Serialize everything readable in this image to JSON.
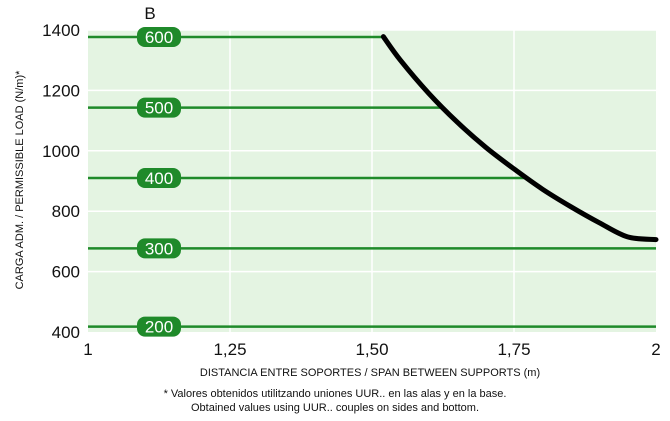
{
  "chart_data": {
    "type": "line",
    "panel_label": "B",
    "xlabel": "DISTANCIA ENTRE SOPORTES / SPAN BETWEEN SUPPORTS (m)",
    "ylabel": "CARGA ADM. / PERMISSIBLE LOAD (N/m)*",
    "xlim": [
      1,
      2
    ],
    "ylim": [
      400,
      1400
    ],
    "x_ticks": [
      "1",
      "1,25",
      "1,50",
      "1,75",
      "2"
    ],
    "x_tick_values": [
      1,
      1.25,
      1.5,
      1.75,
      2
    ],
    "y_ticks": [
      "400",
      "600",
      "800",
      "1000",
      "1200",
      "1400"
    ],
    "y_tick_values": [
      400,
      600,
      800,
      1000,
      1200,
      1400
    ],
    "grid": true,
    "curve": {
      "x": [
        1.52,
        1.55,
        1.6,
        1.65,
        1.7,
        1.75,
        1.8,
        1.85,
        1.9,
        1.95,
        2.0
      ],
      "y": [
        1378,
        1300,
        1190,
        1095,
        1012,
        940,
        873,
        815,
        762,
        715,
        706
      ]
    },
    "reference_lines": [
      {
        "label": "600",
        "y": 1377,
        "x_end": 1.52
      },
      {
        "label": "500",
        "y": 1143,
        "x_end": 1.62
      },
      {
        "label": "400",
        "y": 910,
        "x_end": 1.77
      },
      {
        "label": "300",
        "y": 677,
        "x_end": 2.0
      },
      {
        "label": "200",
        "y": 418,
        "x_end": 2.0
      }
    ],
    "colors": {
      "plot_background": "#e4f4e2",
      "grid": "#ffffff",
      "reference_line": "#1f8a2a",
      "label_fill": "#1f8a2a",
      "curve": "#000000"
    }
  },
  "footnote": {
    "line1": "* Valores obtenidos utilitzando uniones UUR.. en las alas y en la base.",
    "line2": "Obtained values using UUR.. couples on sides and bottom."
  }
}
